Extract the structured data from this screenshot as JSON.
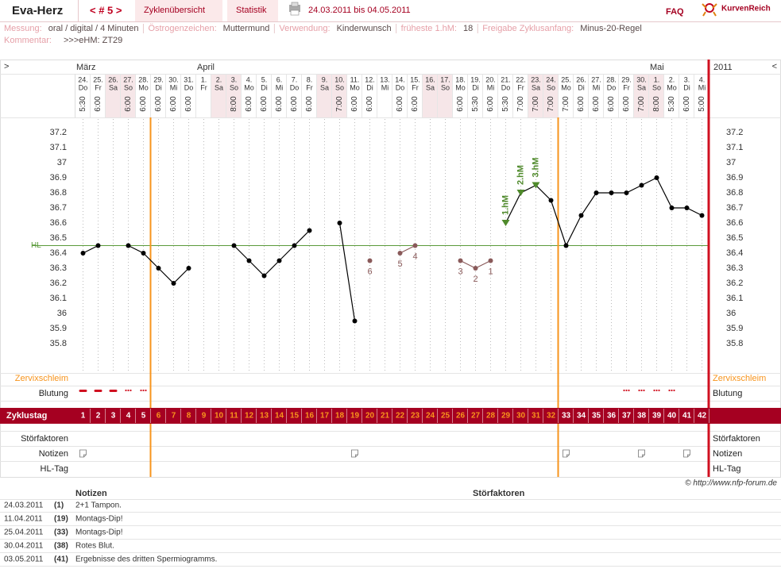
{
  "header": {
    "user": "Eva-Herz",
    "cycle_nav": "< # 5 >",
    "tabs": [
      "Zyklenübersicht",
      "Statistik"
    ],
    "date_range": "24.03.2011 bis 04.05.2011",
    "faq": "FAQ",
    "brand": "KurvenReich"
  },
  "info": {
    "items": [
      {
        "label": "Messung:",
        "value": "oral / digital / 4 Minuten"
      },
      {
        "label": "Östrogenzeichen:",
        "value": "Muttermund"
      },
      {
        "label": "Verwendung:",
        "value": "Kinderwunsch"
      },
      {
        "label": "früheste 1.hM:",
        "value": "18"
      },
      {
        "label": "Freigabe Zyklusanfang:",
        "value": "Minus-20-Regel"
      }
    ],
    "comment_label": "Kommentar:",
    "comment": ">>>eHM: ZT29"
  },
  "chart_data": {
    "type": "line",
    "nav_prev": ">",
    "nav_next": "<",
    "year": "2011",
    "month_labels": [
      "März",
      null,
      null,
      null,
      null,
      null,
      null,
      null,
      "April",
      null,
      null,
      null,
      null,
      null,
      null,
      null,
      null,
      null,
      null,
      null,
      null,
      null,
      null,
      null,
      null,
      null,
      null,
      null,
      null,
      null,
      null,
      null,
      null,
      null,
      null,
      null,
      null,
      null,
      "Mai",
      null,
      null,
      null
    ],
    "categories": [
      "24.",
      "25.",
      "26.",
      "27.",
      "28.",
      "29.",
      "30.",
      "31.",
      "1.",
      "2.",
      "3.",
      "4.",
      "5.",
      "6.",
      "7.",
      "8.",
      "9.",
      "10.",
      "11.",
      "12.",
      "13.",
      "14.",
      "15.",
      "16.",
      "17.",
      "18.",
      "19.",
      "20.",
      "21.",
      "22.",
      "23.",
      "24.",
      "25.",
      "26.",
      "27.",
      "28.",
      "29.",
      "30.",
      "1.",
      "2.",
      "3.",
      "4."
    ],
    "weekdays": [
      "Do",
      "Fr",
      "Sa",
      "So",
      "Mo",
      "Di",
      "Mi",
      "Do",
      "Fr",
      "Sa",
      "So",
      "Mo",
      "Di",
      "Mi",
      "Do",
      "Fr",
      "Sa",
      "So",
      "Mo",
      "Di",
      "Mi",
      "Do",
      "Fr",
      "Sa",
      "So",
      "Mo",
      "Di",
      "Mi",
      "Do",
      "Fr",
      "Sa",
      "So",
      "Mo",
      "Di",
      "Mi",
      "Do",
      "Fr",
      "Sa",
      "So",
      "Mo",
      "Di",
      "Mi"
    ],
    "times": [
      "5:30",
      "6:00",
      null,
      "6:00",
      "6:00",
      "6:00",
      "6:00",
      "6:00",
      null,
      null,
      "8:00",
      "6:00",
      "6:00",
      "6:00",
      "6:00",
      "6:00",
      null,
      "7:00",
      "6:00",
      "6:00",
      null,
      "6:00",
      "6:00",
      null,
      null,
      "6:00",
      "5:30",
      "6:00",
      "5:30",
      "7:00",
      "7:00",
      "7:00",
      "7:00",
      "6:00",
      "6:00",
      "6:00",
      "6:00",
      "7:00",
      "8:00",
      "5:30",
      "6:00",
      "5:00"
    ],
    "cycle_days": [
      1,
      2,
      3,
      4,
      5,
      6,
      7,
      8,
      9,
      10,
      11,
      12,
      13,
      14,
      15,
      16,
      17,
      18,
      19,
      20,
      21,
      22,
      23,
      24,
      25,
      26,
      27,
      28,
      29,
      30,
      31,
      32,
      33,
      34,
      35,
      36,
      37,
      38,
      39,
      40,
      41,
      42
    ],
    "series": [
      {
        "color": "#000000",
        "values": [
          36.4,
          36.45,
          null,
          36.45,
          36.4,
          36.3,
          36.2,
          36.3,
          null,
          null,
          36.45,
          36.35,
          36.25,
          36.35,
          36.45,
          36.55,
          null,
          36.6,
          35.95,
          null,
          null,
          null,
          null,
          null,
          null,
          null,
          null,
          null,
          36.6,
          36.8,
          36.85,
          36.75,
          36.45,
          36.65,
          36.8,
          36.8,
          36.8,
          36.85,
          36.9,
          36.7,
          36.7,
          36.65
        ],
        "marker_color": "#4f8a2b",
        "marker_labels": [
          null,
          null,
          null,
          null,
          null,
          null,
          null,
          null,
          null,
          null,
          null,
          null,
          null,
          null,
          null,
          null,
          null,
          null,
          null,
          null,
          null,
          null,
          null,
          null,
          null,
          null,
          null,
          null,
          "1.hM",
          "2.hM",
          "3.hM",
          null,
          null,
          null,
          null,
          null,
          null,
          null,
          null,
          null,
          null,
          null
        ]
      },
      {
        "color": "#8a5a5a",
        "values": [
          null,
          null,
          null,
          null,
          null,
          null,
          null,
          null,
          null,
          null,
          null,
          null,
          null,
          null,
          null,
          null,
          null,
          null,
          null,
          36.35,
          null,
          36.4,
          36.45,
          null,
          null,
          36.35,
          36.3,
          36.35,
          null,
          null,
          null,
          null,
          null,
          null,
          null,
          null,
          null,
          null,
          null,
          null,
          null,
          null
        ],
        "point_labels": [
          null,
          null,
          null,
          null,
          null,
          null,
          null,
          null,
          null,
          null,
          null,
          null,
          null,
          null,
          null,
          null,
          null,
          null,
          null,
          6,
          null,
          5,
          4,
          null,
          null,
          3,
          2,
          1,
          null,
          null,
          null,
          null,
          null,
          null,
          null,
          null,
          null,
          null,
          null,
          null,
          null,
          null
        ]
      }
    ],
    "hl_label": "HL",
    "hl_value": 36.45,
    "hl_color": "#5a9a3a",
    "ylim": [
      35.6,
      37.3
    ],
    "yticks": [
      37.2,
      37.1,
      37,
      36.9,
      36.8,
      36.7,
      36.6,
      36.5,
      36.4,
      36.3,
      36.2,
      36.1,
      36,
      35.9,
      35.8
    ]
  },
  "rows": [
    "Zervixschleim",
    "Blutung",
    "Zyklustag",
    "Störfaktoren",
    "Notizen",
    "HL-Tag"
  ],
  "copyright": "© http://www.nfp-forum.de",
  "notes": {
    "headers": [
      "Notizen",
      "Störfaktoren"
    ],
    "rows": [
      [
        "24.03.2011",
        "(1)",
        "2+1 Tampon."
      ],
      [
        "11.04.2011",
        "(19)",
        "Montags-Dip!"
      ],
      [
        "25.04.2011",
        "(33)",
        "Montags-Dip!"
      ],
      [
        "30.04.2011",
        "(38)",
        "Rotes Blut."
      ],
      [
        "03.05.2011",
        "(41)",
        "Ergebnisse des dritten Spermiogramms."
      ]
    ]
  }
}
